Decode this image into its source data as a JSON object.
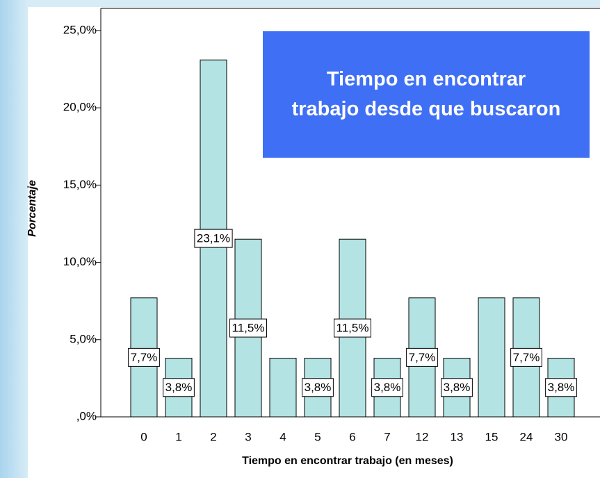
{
  "chart_data": {
    "type": "bar",
    "title": "Tiempo en encontrar trabajo desde que buscaron",
    "x_label": "Tiempo en encontrar trabajo (en meses)",
    "y_label": "Porcentaje",
    "categories": [
      "0",
      "1",
      "2",
      "3",
      "4",
      "5",
      "6",
      "7",
      "12",
      "13",
      "15",
      "24",
      "30"
    ],
    "values": [
      7.7,
      3.8,
      23.1,
      11.5,
      3.8,
      3.8,
      11.5,
      3.8,
      7.7,
      3.8,
      7.7,
      7.7,
      3.8
    ],
    "value_labels": [
      "7,7%",
      "3,8%",
      "23,1%",
      "11,5%",
      null,
      "3,8%",
      "11,5%",
      "3,8%",
      "7,7%",
      "3,8%",
      null,
      "7,7%",
      "3,8%"
    ],
    "color": "#b3e3e3",
    "ylim": [
      0,
      25
    ],
    "yticks": [
      {
        "value": 0,
        "label": ",0%"
      },
      {
        "value": 5,
        "label": "5,0%"
      },
      {
        "value": 10,
        "label": "10,0%"
      },
      {
        "value": 15,
        "label": "15,0%"
      },
      {
        "value": 20,
        "label": "20,0%"
      },
      {
        "value": 25,
        "label": "25,0%"
      }
    ]
  }
}
